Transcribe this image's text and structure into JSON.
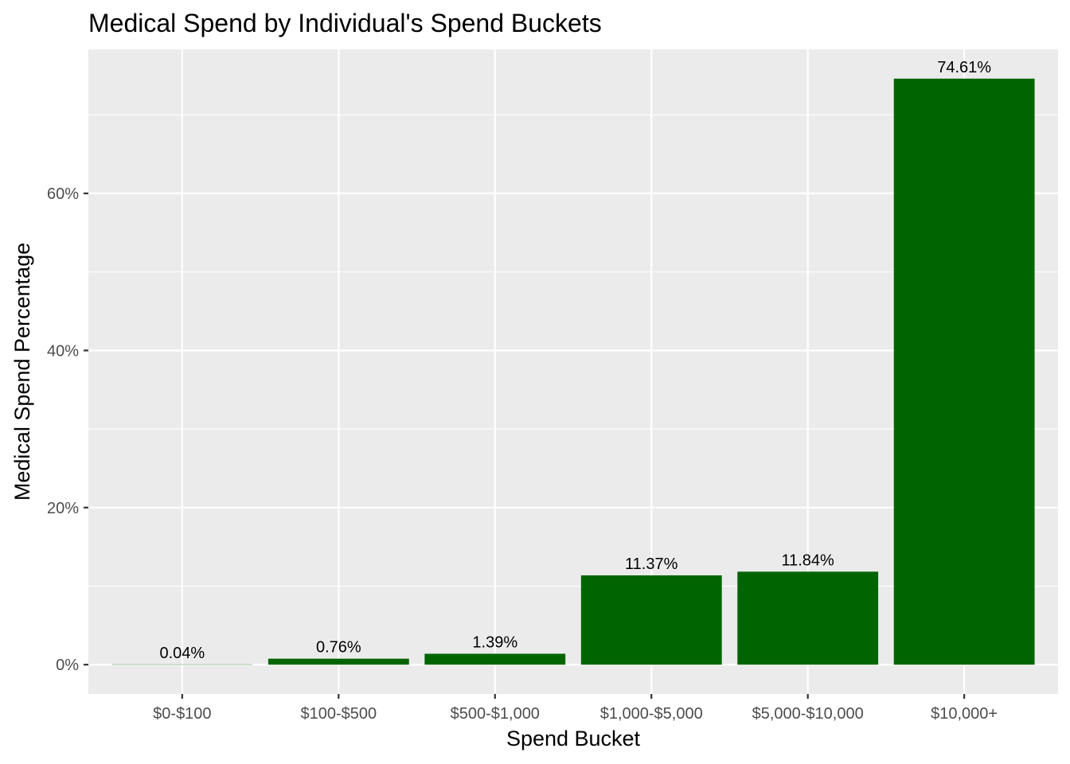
{
  "chart_data": {
    "type": "bar",
    "title": "Medical Spend by Individual's Spend Buckets",
    "xlabel": "Spend Bucket",
    "ylabel": "Medical Spend Percentage",
    "categories": [
      "$0-$100",
      "$100-$500",
      "$500-$1,000",
      "$1,000-$5,000",
      "$5,000-$10,000",
      "$10,000+"
    ],
    "values": [
      0.04,
      0.76,
      1.39,
      11.37,
      11.84,
      74.61
    ],
    "value_labels": [
      "0.04%",
      "0.76%",
      "1.39%",
      "11.37%",
      "11.84%",
      "74.61%"
    ],
    "ylim": [
      -3.73,
      78.34
    ],
    "yticks": [
      0,
      20,
      40,
      60
    ],
    "ytick_labels": [
      "0%",
      "20%",
      "40%",
      "60%"
    ],
    "grid": true,
    "colors": {
      "bar": "#006400",
      "panel": "#ebebeb",
      "grid": "#ffffff"
    }
  }
}
